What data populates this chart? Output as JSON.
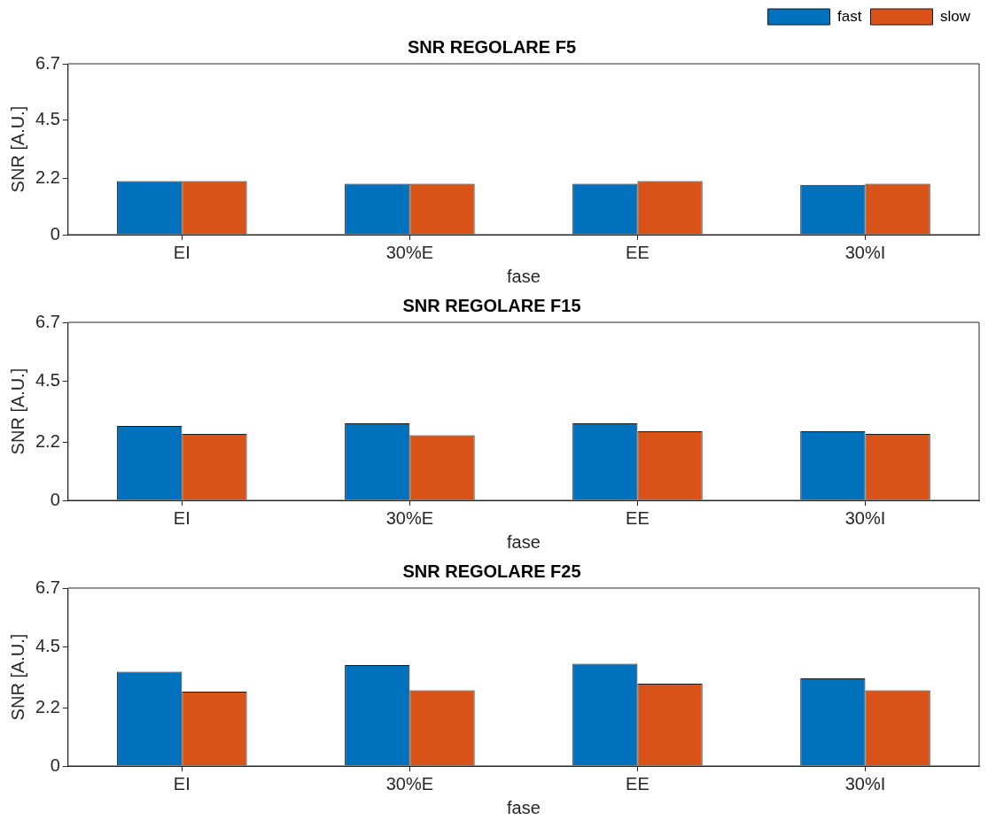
{
  "chart_data": [
    {
      "type": "bar",
      "title": "SNR REGOLARE F5",
      "xlabel": "fase",
      "ylabel": "SNR [A.U.]",
      "categories": [
        "EI",
        "30%E",
        "EE",
        "30%I"
      ],
      "series": [
        {
          "name": "fast",
          "color": "#0072bd",
          "values": [
            2.1,
            2.0,
            2.0,
            1.95
          ]
        },
        {
          "name": "slow",
          "color": "#d95319",
          "values": [
            2.1,
            2.0,
            2.1,
            2.0
          ]
        }
      ],
      "ylim": [
        0,
        6.7
      ],
      "yticks": [
        0,
        2.2,
        4.5,
        6.7
      ],
      "grid": false,
      "legend": "top right"
    },
    {
      "type": "bar",
      "title": "SNR REGOLARE F15",
      "xlabel": "fase",
      "ylabel": "SNR [A.U.]",
      "categories": [
        "EI",
        "30%E",
        "EE",
        "30%I"
      ],
      "series": [
        {
          "color": "#0072bd",
          "values": [
            2.8,
            2.9,
            2.9,
            2.6
          ]
        },
        {
          "color": "#d95319",
          "values": [
            2.5,
            2.45,
            2.6,
            2.5
          ]
        }
      ],
      "ylim": [
        0,
        6.7
      ],
      "yticks": [
        0,
        2.2,
        4.5,
        6.7
      ],
      "grid": false
    },
    {
      "type": "bar",
      "title": "SNR REGOLARE F25",
      "xlabel": "fase",
      "ylabel": "SNR [A.U.]",
      "categories": [
        "EI",
        "30%E",
        "EE",
        "30%I"
      ],
      "series": [
        {
          "color": "#0072bd",
          "values": [
            3.55,
            3.8,
            3.85,
            3.3
          ]
        },
        {
          "color": "#d95319",
          "values": [
            2.8,
            2.85,
            3.1,
            2.85
          ]
        }
      ],
      "ylim": [
        0,
        6.7
      ],
      "yticks": [
        0,
        2.2,
        4.5,
        6.7
      ],
      "grid": false
    }
  ]
}
